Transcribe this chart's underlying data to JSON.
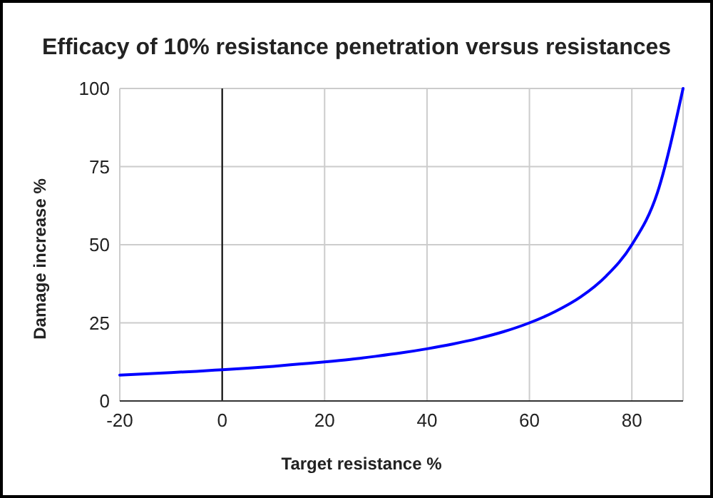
{
  "chart_data": {
    "type": "line",
    "title": "Efficacy of 10% resistance penetration versus resistances",
    "xlabel": "Target resistance %",
    "ylabel": "Damage increase %",
    "x": [
      -20,
      -15,
      -10,
      -5,
      0,
      5,
      10,
      15,
      20,
      25,
      30,
      35,
      40,
      45,
      50,
      55,
      60,
      65,
      70,
      75,
      80,
      85,
      90
    ],
    "series": [
      {
        "color": "#0000ff",
        "values": [
          8.3,
          8.7,
          9.1,
          9.5,
          10,
          10.5,
          11.1,
          11.8,
          12.5,
          13.3,
          14.3,
          15.4,
          16.7,
          18.2,
          20,
          22.2,
          25,
          28.6,
          33.3,
          40,
          50,
          66.7,
          100
        ]
      }
    ],
    "xlim": [
      -20,
      90
    ],
    "xticks": [
      -20,
      0,
      20,
      40,
      60,
      80
    ],
    "ylim": [
      0,
      100
    ],
    "yticks": [
      0,
      25,
      50,
      75,
      100
    ],
    "grid": true,
    "marker": "none",
    "line_style": "solid",
    "ref_lines": [
      {
        "axis": "x",
        "value": 0,
        "color": "#000000"
      }
    ]
  }
}
